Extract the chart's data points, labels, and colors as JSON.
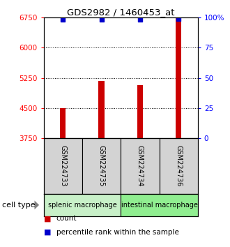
{
  "title": "GDS2982 / 1460453_at",
  "samples": [
    "GSM224733",
    "GSM224735",
    "GSM224734",
    "GSM224736"
  ],
  "bar_values": [
    4500,
    5175,
    5060,
    6750
  ],
  "percentile_values": [
    98,
    98,
    98,
    99
  ],
  "ylim_left": [
    3750,
    6750
  ],
  "ylim_right": [
    0,
    100
  ],
  "yticks_left": [
    3750,
    4500,
    5250,
    6000,
    6750
  ],
  "yticks_right": [
    0,
    25,
    50,
    75,
    100
  ],
  "bar_color": "#cc0000",
  "dot_color": "#0000cc",
  "cell_types": [
    {
      "label": "splenic macrophage",
      "samples": [
        0,
        1
      ],
      "color": "#c8f0c8"
    },
    {
      "label": "intestinal macrophage",
      "samples": [
        2,
        3
      ],
      "color": "#90ee90"
    }
  ],
  "legend_items": [
    {
      "label": "count",
      "color": "#cc0000"
    },
    {
      "label": "percentile rank within the sample",
      "color": "#0000cc"
    }
  ],
  "cell_type_label": "cell type",
  "sample_box_color": "#d3d3d3",
  "figsize": [
    3.3,
    3.54
  ],
  "dpi": 100
}
